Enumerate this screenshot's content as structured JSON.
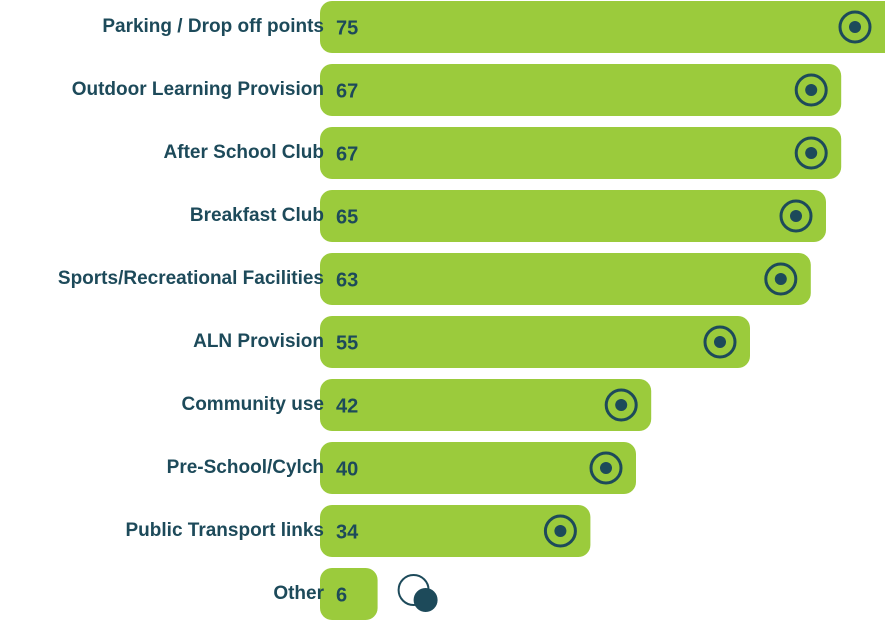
{
  "chart_data": {
    "type": "bar",
    "orientation": "horizontal",
    "categories": [
      "Parking / Drop off points",
      "Outdoor Learning Provision",
      "After School Club",
      "Breakfast Club",
      "Sports/Recreational Facilities",
      "ALN Provision",
      "Community use",
      "Pre-School/Cylch",
      "Public Transport links",
      "Other"
    ],
    "values": [
      75,
      67,
      67,
      65,
      63,
      55,
      42,
      40,
      34,
      6
    ],
    "color": "#9bcb3c"
  }
}
